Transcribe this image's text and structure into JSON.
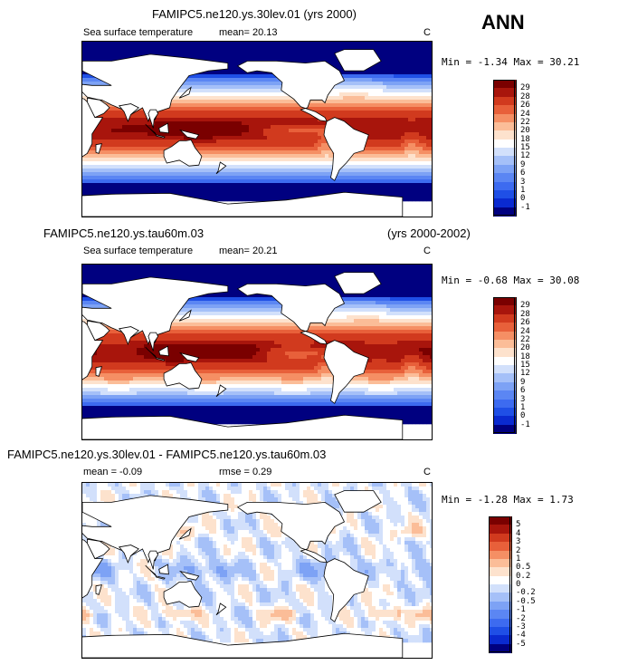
{
  "season": "ANN",
  "panels": [
    {
      "title": "FAMIPC5.ne120.ys.30lev.01 (yrs 2000)",
      "variable": "Sea surface temperature",
      "mean_text": "mean=  20.13",
      "units": "C",
      "minmax_text": "Min =  -1.34 Max =  30.21",
      "type": "sst"
    },
    {
      "title_left": "FAMIPC5.ne120.ys.tau60m.03",
      "title_right": "(yrs 2000-2002)",
      "variable": "Sea surface temperature",
      "mean_text": "mean=  20.21",
      "units": "C",
      "minmax_text": "Min =  -0.68 Max =  30.08",
      "type": "sst"
    },
    {
      "title": "FAMIPC5.ne120.ys.30lev.01 - FAMIPC5.ne120.ys.tau60m.03",
      "mean_text": "mean =  -0.09",
      "rmse_text": "rmse =   0.29",
      "units": "C",
      "minmax_text": "Min =  -1.28 Max =   1.73",
      "type": "diff"
    }
  ],
  "chart_data": [
    {
      "type": "heatmap",
      "title": "FAMIPC5.ne120.ys.30lev.01 (yrs 2000)",
      "variable": "Sea surface temperature",
      "units": "C",
      "mean": 20.13,
      "min": -1.34,
      "max": 30.21,
      "levels": [
        -1,
        0,
        1,
        3,
        6,
        9,
        12,
        15,
        18,
        20,
        22,
        24,
        26,
        28,
        29
      ],
      "colors": [
        "#000080",
        "#0a2ad0",
        "#1f4fe6",
        "#3d6bf0",
        "#5b86f3",
        "#7da2f5",
        "#a5c0f8",
        "#d2e0fb",
        "#ffffff",
        "#fde2cd",
        "#fbbd98",
        "#f58f64",
        "#e8603a",
        "#d13a1e",
        "#a8150c",
        "#7a0000"
      ]
    },
    {
      "type": "heatmap",
      "title": "FAMIPC5.ne120.ys.tau60m.03 (yrs 2000-2002)",
      "variable": "Sea surface temperature",
      "units": "C",
      "mean": 20.21,
      "min": -0.68,
      "max": 30.08,
      "levels": [
        -1,
        0,
        1,
        3,
        6,
        9,
        12,
        15,
        18,
        20,
        22,
        24,
        26,
        28,
        29
      ],
      "colors": [
        "#000080",
        "#0a2ad0",
        "#1f4fe6",
        "#3d6bf0",
        "#5b86f3",
        "#7da2f5",
        "#a5c0f8",
        "#d2e0fb",
        "#ffffff",
        "#fde2cd",
        "#fbbd98",
        "#f58f64",
        "#e8603a",
        "#d13a1e",
        "#a8150c",
        "#7a0000"
      ]
    },
    {
      "type": "heatmap",
      "title": "FAMIPC5.ne120.ys.30lev.01 - FAMIPC5.ne120.ys.tau60m.03",
      "units": "C",
      "mean": -0.09,
      "rmse": 0.29,
      "min": -1.28,
      "max": 1.73,
      "levels": [
        -5,
        -4,
        -3,
        -2,
        -1,
        -0.5,
        -0.2,
        0,
        0.2,
        0.5,
        1,
        2,
        3,
        4,
        5
      ],
      "colors": [
        "#000080",
        "#0a2ad0",
        "#1f4fe6",
        "#3d6bf0",
        "#5b86f3",
        "#7da2f5",
        "#a5c0f8",
        "#d2e0fb",
        "#ffffff",
        "#fde2cd",
        "#fbbd98",
        "#f58f64",
        "#e8603a",
        "#d13a1e",
        "#a8150c",
        "#7a0000"
      ]
    }
  ],
  "legend_sst_labels": [
    "29",
    "28",
    "26",
    "24",
    "22",
    "20",
    "18",
    "15",
    "12",
    "9",
    "6",
    "3",
    "1",
    "0",
    "-1"
  ],
  "legend_diff_labels": [
    "5",
    "4",
    "3",
    "2",
    "1",
    "0.5",
    "0.2",
    "0",
    "-0.2",
    "-0.5",
    "-1",
    "-2",
    "-3",
    "-4",
    "-5"
  ]
}
